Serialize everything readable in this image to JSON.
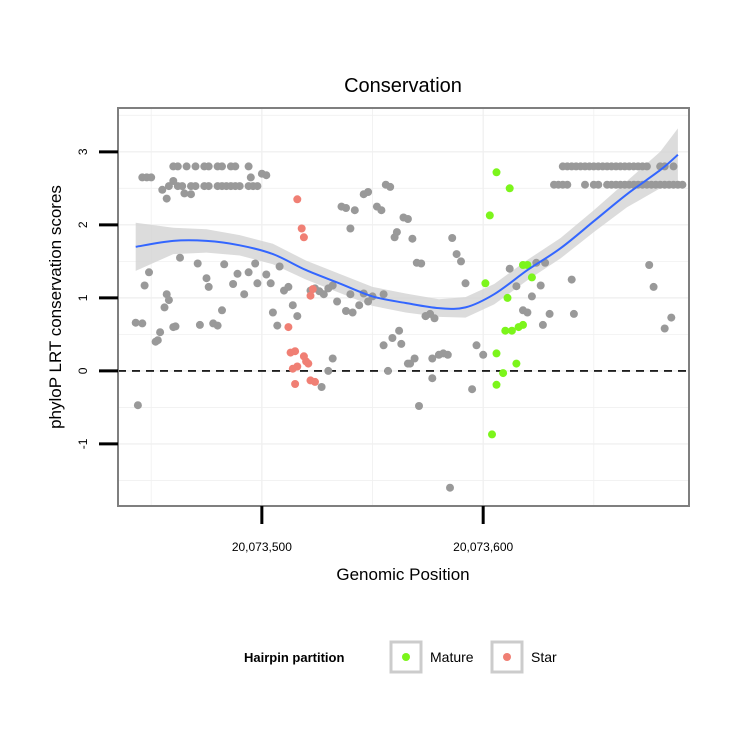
{
  "chart_data": {
    "type": "scatter",
    "title": "Conservation",
    "xlabel": "Genomic Position",
    "ylabel": "phyloP LRT conservation scores",
    "xlim": [
      20073435,
      20073693
    ],
    "ylim": [
      -1.85,
      3.6
    ],
    "x_ticks": [
      {
        "value": 20073500,
        "label": "20,073,500"
      },
      {
        "value": 20073600,
        "label": "20,073,600"
      }
    ],
    "y_ticks": [
      {
        "value": -1,
        "label": "-1"
      },
      {
        "value": 0,
        "label": "0"
      },
      {
        "value": 1,
        "label": "1"
      },
      {
        "value": 2,
        "label": "2"
      },
      {
        "value": 3,
        "label": "3"
      }
    ],
    "reference_line": {
      "y": 0,
      "style": "dashed"
    },
    "legend": {
      "title": "Hairpin partition",
      "position": "bottom",
      "entries": [
        {
          "name": "Mature",
          "color": "#7cf51b"
        },
        {
          "name": "Star",
          "color": "#f07f74"
        }
      ]
    },
    "colors": {
      "Other": "#999999",
      "Mature": "#7cf51b",
      "Star": "#f07f74",
      "smooth": "#3366ff",
      "band": "#d3d3d3"
    },
    "series": [
      {
        "name": "Other",
        "color": "#999999",
        "points": [
          [
            20073446,
            2.65
          ],
          [
            20073448,
            2.65
          ],
          [
            20073450,
            2.65
          ],
          [
            20073460,
            2.8
          ],
          [
            20073462,
            2.8
          ],
          [
            20073466,
            2.8
          ],
          [
            20073470,
            2.8
          ],
          [
            20073474,
            2.8
          ],
          [
            20073476,
            2.8
          ],
          [
            20073480,
            2.8
          ],
          [
            20073482,
            2.8
          ],
          [
            20073486,
            2.8
          ],
          [
            20073488,
            2.8
          ],
          [
            20073494,
            2.8
          ],
          [
            20073458,
            2.53
          ],
          [
            20073462,
            2.53
          ],
          [
            20073464,
            2.53
          ],
          [
            20073468,
            2.53
          ],
          [
            20073470,
            2.53
          ],
          [
            20073474,
            2.53
          ],
          [
            20073476,
            2.53
          ],
          [
            20073480,
            2.53
          ],
          [
            20073482,
            2.53
          ],
          [
            20073484,
            2.53
          ],
          [
            20073486,
            2.53
          ],
          [
            20073488,
            2.53
          ],
          [
            20073490,
            2.53
          ],
          [
            20073494,
            2.53
          ],
          [
            20073496,
            2.53
          ],
          [
            20073498,
            2.53
          ],
          [
            20073455,
            2.48
          ],
          [
            20073460,
            2.6
          ],
          [
            20073465,
            2.43
          ],
          [
            20073468,
            2.42
          ],
          [
            20073457,
            2.36
          ],
          [
            20073495,
            2.65
          ],
          [
            20073500,
            2.7
          ],
          [
            20073502,
            2.68
          ],
          [
            20073443,
            0.66
          ],
          [
            20073446,
            0.65
          ],
          [
            20073447,
            1.17
          ],
          [
            20073449,
            1.35
          ],
          [
            20073452,
            0.4
          ],
          [
            20073453,
            0.42
          ],
          [
            20073454,
            0.53
          ],
          [
            20073456,
            0.87
          ],
          [
            20073457,
            1.05
          ],
          [
            20073458,
            0.97
          ],
          [
            20073460,
            0.6
          ],
          [
            20073461,
            0.61
          ],
          [
            20073463,
            1.55
          ],
          [
            20073471,
            1.47
          ],
          [
            20073472,
            0.63
          ],
          [
            20073475,
            1.27
          ],
          [
            20073476,
            1.15
          ],
          [
            20073478,
            0.65
          ],
          [
            20073480,
            0.62
          ],
          [
            20073482,
            0.83
          ],
          [
            20073483,
            1.46
          ],
          [
            20073487,
            1.19
          ],
          [
            20073489,
            1.33
          ],
          [
            20073492,
            1.05
          ],
          [
            20073494,
            1.35
          ],
          [
            20073497,
            1.47
          ],
          [
            20073498,
            1.2
          ],
          [
            20073502,
            1.32
          ],
          [
            20073504,
            1.2
          ],
          [
            20073505,
            0.8
          ],
          [
            20073507,
            0.62
          ],
          [
            20073444,
            -0.47
          ],
          [
            20073508,
            1.43
          ],
          [
            20073510,
            1.1
          ],
          [
            20073512,
            1.15
          ],
          [
            20073514,
            0.9
          ],
          [
            20073516,
            0.75
          ],
          [
            20073522,
            1.1
          ],
          [
            20073524,
            1.13
          ],
          [
            20073526,
            1.09
          ],
          [
            20073528,
            1.05
          ],
          [
            20073530,
            1.13
          ],
          [
            20073532,
            1.17
          ],
          [
            20073534,
            0.95
          ],
          [
            20073538,
            0.82
          ],
          [
            20073540,
            1.05
          ],
          [
            20073541,
            0.8
          ],
          [
            20073544,
            0.9
          ],
          [
            20073546,
            1.06
          ],
          [
            20073548,
            0.95
          ],
          [
            20073550,
            1.02
          ],
          [
            20073555,
            1.05
          ],
          [
            20073527,
            -0.22
          ],
          [
            20073532,
            0.17
          ],
          [
            20073536,
            2.25
          ],
          [
            20073538,
            2.23
          ],
          [
            20073540,
            1.95
          ],
          [
            20073542,
            2.2
          ],
          [
            20073546,
            2.42
          ],
          [
            20073548,
            2.45
          ],
          [
            20073552,
            2.25
          ],
          [
            20073554,
            2.2
          ],
          [
            20073556,
            2.55
          ],
          [
            20073558,
            2.52
          ],
          [
            20073560,
            1.83
          ],
          [
            20073561,
            1.9
          ],
          [
            20073564,
            2.1
          ],
          [
            20073566,
            2.08
          ],
          [
            20073568,
            1.81
          ],
          [
            20073570,
            1.48
          ],
          [
            20073572,
            1.47
          ],
          [
            20073555,
            0.35
          ],
          [
            20073559,
            0.45
          ],
          [
            20073562,
            0.55
          ],
          [
            20073563,
            0.37
          ],
          [
            20073566,
            0.1
          ],
          [
            20073569,
            0.17
          ],
          [
            20073571,
            -0.48
          ],
          [
            20073574,
            0.75
          ],
          [
            20073576,
            0.78
          ],
          [
            20073578,
            0.72
          ],
          [
            20073580,
            0.22
          ],
          [
            20073582,
            0.24
          ],
          [
            20073584,
            0.22
          ],
          [
            20073586,
            1.82
          ],
          [
            20073588,
            1.6
          ],
          [
            20073590,
            1.5
          ],
          [
            20073592,
            1.2
          ],
          [
            20073595,
            -0.25
          ],
          [
            20073597,
            0.35
          ],
          [
            20073600,
            0.22
          ],
          [
            20073585,
            -1.6
          ],
          [
            20073577,
            0.17
          ],
          [
            20073577,
            -0.1
          ],
          [
            20073567,
            0.1
          ],
          [
            20073557,
            0.0
          ],
          [
            20073574,
            0.75
          ],
          [
            20073530,
            0.0
          ],
          [
            20073612,
            1.4
          ],
          [
            20073615,
            1.16
          ],
          [
            20073618,
            0.83
          ],
          [
            20073620,
            0.8
          ],
          [
            20073622,
            1.02
          ],
          [
            20073624,
            1.48
          ],
          [
            20073626,
            1.17
          ],
          [
            20073628,
            1.48
          ],
          [
            20073632,
            2.55
          ],
          [
            20073634,
            2.55
          ],
          [
            20073636,
            2.55
          ],
          [
            20073638,
            2.55
          ],
          [
            20073640,
            1.25
          ],
          [
            20073641,
            0.78
          ],
          [
            20073630,
            0.78
          ],
          [
            20073627,
            0.63
          ],
          [
            20073636,
            2.8
          ],
          [
            20073638,
            2.8
          ],
          [
            20073640,
            2.8
          ],
          [
            20073642,
            2.8
          ],
          [
            20073644,
            2.8
          ],
          [
            20073646,
            2.8
          ],
          [
            20073648,
            2.8
          ],
          [
            20073650,
            2.8
          ],
          [
            20073652,
            2.8
          ],
          [
            20073654,
            2.8
          ],
          [
            20073656,
            2.8
          ],
          [
            20073658,
            2.8
          ],
          [
            20073660,
            2.8
          ],
          [
            20073662,
            2.8
          ],
          [
            20073664,
            2.8
          ],
          [
            20073666,
            2.8
          ],
          [
            20073668,
            2.8
          ],
          [
            20073670,
            2.8
          ],
          [
            20073672,
            2.8
          ],
          [
            20073674,
            2.8
          ],
          [
            20073680,
            2.8
          ],
          [
            20073682,
            2.8
          ],
          [
            20073686,
            2.8
          ],
          [
            20073646,
            2.55
          ],
          [
            20073650,
            2.55
          ],
          [
            20073652,
            2.55
          ],
          [
            20073656,
            2.55
          ],
          [
            20073658,
            2.55
          ],
          [
            20073660,
            2.55
          ],
          [
            20073662,
            2.55
          ],
          [
            20073664,
            2.55
          ],
          [
            20073666,
            2.55
          ],
          [
            20073668,
            2.55
          ],
          [
            20073670,
            2.55
          ],
          [
            20073672,
            2.55
          ],
          [
            20073674,
            2.55
          ],
          [
            20073676,
            2.55
          ],
          [
            20073678,
            2.55
          ],
          [
            20073680,
            2.55
          ],
          [
            20073682,
            2.55
          ],
          [
            20073684,
            2.55
          ],
          [
            20073686,
            2.55
          ],
          [
            20073688,
            2.55
          ],
          [
            20073690,
            2.55
          ],
          [
            20073675,
            1.45
          ],
          [
            20073677,
            1.15
          ],
          [
            20073682,
            0.58
          ],
          [
            20073685,
            0.73
          ]
        ]
      },
      {
        "name": "Mature",
        "color": "#7cf51b",
        "points": [
          [
            20073606,
            2.72
          ],
          [
            20073612,
            2.5
          ],
          [
            20073603,
            2.13
          ],
          [
            20073601,
            1.2
          ],
          [
            20073611,
            1.0
          ],
          [
            20073618,
            1.45
          ],
          [
            20073620,
            1.45
          ],
          [
            20073622,
            1.28
          ],
          [
            20073610,
            0.55
          ],
          [
            20073613,
            0.55
          ],
          [
            20073616,
            0.6
          ],
          [
            20073618,
            0.63
          ],
          [
            20073606,
            0.24
          ],
          [
            20073615,
            0.1
          ],
          [
            20073606,
            -0.19
          ],
          [
            20073609,
            -0.03
          ],
          [
            20073604,
            -0.87
          ]
        ]
      },
      {
        "name": "Star",
        "color": "#f07f74",
        "points": [
          [
            20073516,
            2.35
          ],
          [
            20073518,
            1.95
          ],
          [
            20073519,
            1.83
          ],
          [
            20073523,
            1.12
          ],
          [
            20073522,
            1.03
          ],
          [
            20073520,
            0.13
          ],
          [
            20073512,
            0.6
          ],
          [
            20073513,
            0.25
          ],
          [
            20073515,
            0.27
          ],
          [
            20073516,
            0.06
          ],
          [
            20073514,
            0.03
          ],
          [
            20073519,
            0.2
          ],
          [
            20073521,
            0.1
          ],
          [
            20073522,
            -0.13
          ],
          [
            20073524,
            -0.15
          ],
          [
            20073515,
            -0.18
          ]
        ]
      }
    ],
    "smooth": [
      [
        20073443,
        1.7
      ],
      [
        20073460,
        1.78
      ],
      [
        20073475,
        1.78
      ],
      [
        20073490,
        1.72
      ],
      [
        20073505,
        1.6
      ],
      [
        20073520,
        1.38
      ],
      [
        20073535,
        1.2
      ],
      [
        20073550,
        1.02
      ],
      [
        20073565,
        0.93
      ],
      [
        20073580,
        0.86
      ],
      [
        20073592,
        0.87
      ],
      [
        20073605,
        1.05
      ],
      [
        20073620,
        1.38
      ],
      [
        20073635,
        1.68
      ],
      [
        20073650,
        2.05
      ],
      [
        20073665,
        2.42
      ],
      [
        20073680,
        2.75
      ],
      [
        20073688,
        2.96
      ]
    ],
    "band_halfwidth": [
      0.33,
      0.18,
      0.16,
      0.14,
      0.14,
      0.13,
      0.13,
      0.13,
      0.13,
      0.12,
      0.14,
      0.14,
      0.14,
      0.14,
      0.15,
      0.18,
      0.25,
      0.36
    ]
  }
}
